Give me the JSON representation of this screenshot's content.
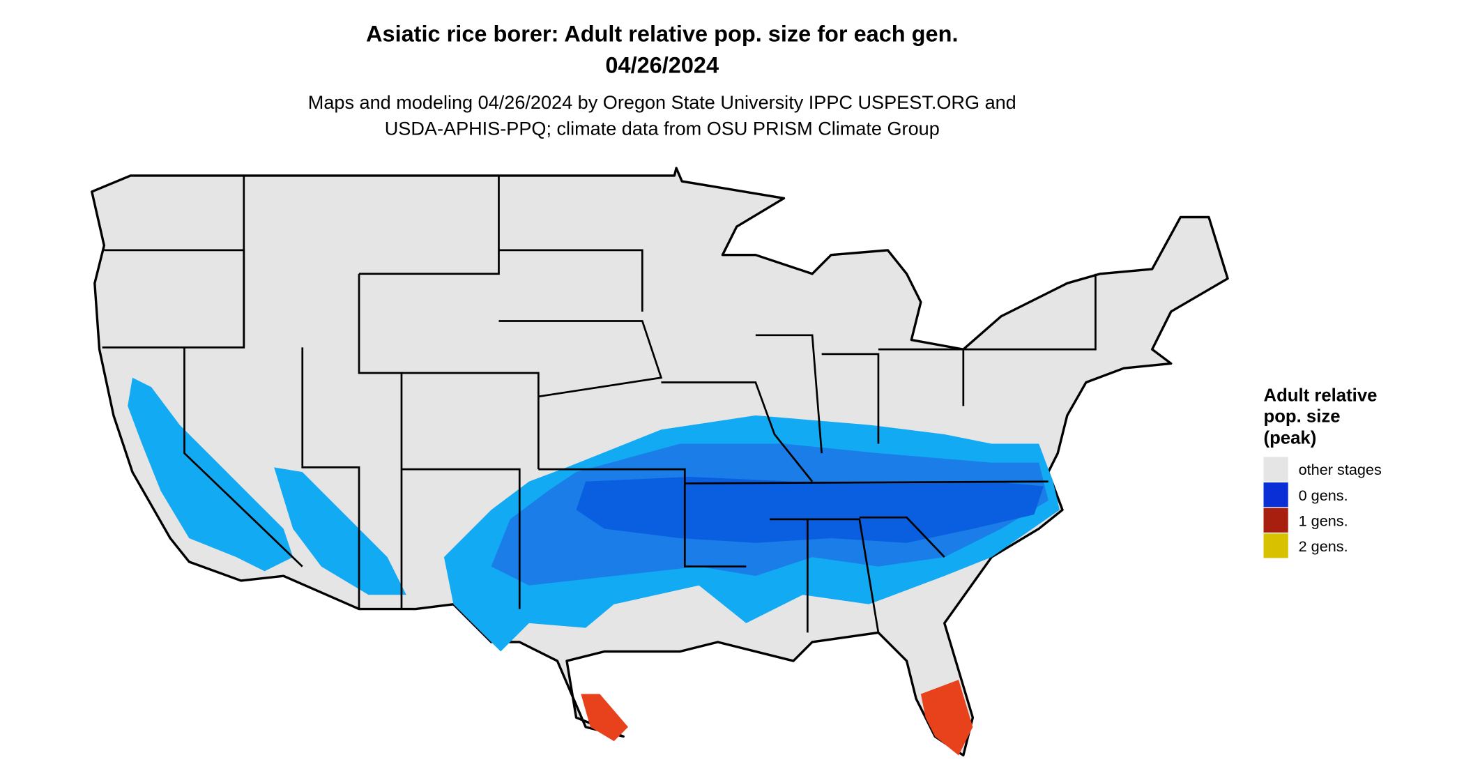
{
  "header": {
    "title_lines": [
      "Asiatic rice borer: Adult relative pop. size for each gen.",
      "04/26/2024"
    ],
    "subtitle_lines": [
      "Maps and modeling 04/26/2024 by Oregon State University IPPC USPEST.ORG and",
      "USDA-APHIS-PPQ; climate data from OSU PRISM Climate Group"
    ]
  },
  "legend": {
    "title_lines": [
      "Adult relative",
      "pop. size",
      "(peak)"
    ],
    "items": [
      {
        "label": "other stages",
        "color": "#e5e5e5"
      },
      {
        "label": "0 gens.",
        "color": "#0a2fd6"
      },
      {
        "label": "1 gens.",
        "color": "#a81f10"
      },
      {
        "label": "2 gens.",
        "color": "#d8c200"
      }
    ]
  }
}
